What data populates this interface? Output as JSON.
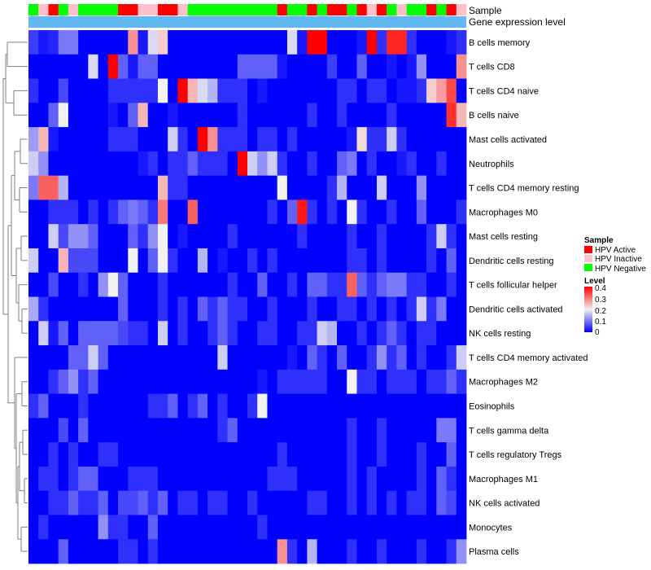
{
  "colors": {
    "low": "#0000FF",
    "mid": "#F2F2F2",
    "high": "#FF0000",
    "gene_expression_track": "#5FB8F0",
    "dendrogram": "#7F7F7F"
  },
  "chart_data": {
    "type": "heatmap",
    "annotation_tracks": [
      "Sample",
      "Gene expression level"
    ],
    "sample_legend": {
      "title": "Sample",
      "items": [
        {
          "label": "HPV Active",
          "color": "#FF0000"
        },
        {
          "label": "HPV Inactive",
          "color": "#FFC0CB"
        },
        {
          "label": "HPV Negative",
          "color": "#00FF00"
        }
      ]
    },
    "level_legend": {
      "title": "Level",
      "ticks": [
        "0.4",
        "0.3",
        "0.2",
        "0.1",
        "0"
      ],
      "range": [
        0,
        0.4
      ]
    },
    "sample_groups": [
      "N",
      "I",
      "A",
      "N",
      "I",
      "N",
      "N",
      "N",
      "N",
      "A",
      "A",
      "I",
      "I",
      "A",
      "A",
      "I",
      "N",
      "N",
      "N",
      "N",
      "N",
      "N",
      "N",
      "N",
      "N",
      "A",
      "N",
      "N",
      "A",
      "N",
      "A",
      "A",
      "N",
      "A",
      "I",
      "A",
      "N",
      "I",
      "N",
      "N",
      "A",
      "N",
      "A",
      "I"
    ],
    "rows": [
      {
        "name": "B cells memory",
        "values": [
          0.05,
          0.02,
          0.03,
          0.1,
          0.1,
          0.0,
          0.0,
          0.0,
          0.0,
          0.0,
          0.28,
          0.02,
          0.18,
          0.23,
          0.0,
          0.0,
          0.0,
          0.0,
          0.0,
          0.0,
          0.0,
          0.0,
          0.0,
          0.0,
          0.0,
          0.0,
          0.18,
          0.02,
          0.4,
          0.4,
          0.0,
          0.0,
          0.0,
          0.02,
          0.4,
          0.04,
          0.37,
          0.37,
          0.04,
          0.0,
          0.0,
          0.0,
          0.02,
          0.04
        ]
      },
      {
        "name": "T cells CD8",
        "values": [
          0.0,
          0.0,
          0.0,
          0.0,
          0.0,
          0.0,
          0.18,
          0.0,
          0.4,
          0.08,
          0.02,
          0.08,
          0.08,
          0.0,
          0.0,
          0.0,
          0.0,
          0.0,
          0.0,
          0.0,
          0.0,
          0.08,
          0.08,
          0.08,
          0.08,
          0.02,
          0.0,
          0.0,
          0.0,
          0.0,
          0.05,
          0.0,
          0.0,
          0.08,
          0.0,
          0.0,
          0.02,
          0.0,
          0.02,
          0.12,
          0.0,
          0.0,
          0.0,
          0.28
        ]
      },
      {
        "name": "T cells CD4 naive",
        "values": [
          0.04,
          0.0,
          0.0,
          0.06,
          0.0,
          0.0,
          0.0,
          0.0,
          0.04,
          0.04,
          0.04,
          0.04,
          0.04,
          0.2,
          0.0,
          0.4,
          0.25,
          0.18,
          0.15,
          0.04,
          0.04,
          0.04,
          0.0,
          0.02,
          0.0,
          0.0,
          0.0,
          0.0,
          0.0,
          0.0,
          0.0,
          0.04,
          0.04,
          0.0,
          0.04,
          0.04,
          0.0,
          0.02,
          0.02,
          0.04,
          0.23,
          0.27,
          0.34,
          0.0
        ]
      },
      {
        "name": "B cells naive",
        "values": [
          0.0,
          0.0,
          0.08,
          0.2,
          0.0,
          0.0,
          0.0,
          0.0,
          0.02,
          0.0,
          0.08,
          0.25,
          0.0,
          0.0,
          0.02,
          0.0,
          0.0,
          0.0,
          0.0,
          0.0,
          0.0,
          0.04,
          0.0,
          0.0,
          0.0,
          0.0,
          0.0,
          0.0,
          0.04,
          0.0,
          0.0,
          0.04,
          0.0,
          0.0,
          0.0,
          0.0,
          0.04,
          0.0,
          0.0,
          0.0,
          0.0,
          0.0,
          0.36,
          0.25
        ]
      },
      {
        "name": "Mast cells activated",
        "values": [
          0.13,
          0.25,
          0.02,
          0.0,
          0.0,
          0.0,
          0.0,
          0.0,
          0.04,
          0.04,
          0.04,
          0.0,
          0.0,
          0.0,
          0.17,
          0.04,
          0.0,
          0.4,
          0.28,
          0.04,
          0.04,
          0.04,
          0.0,
          0.04,
          0.04,
          0.0,
          0.04,
          0.0,
          0.0,
          0.0,
          0.0,
          0.0,
          0.02,
          0.22,
          0.04,
          0.04,
          0.17,
          0.04,
          0.0,
          0.0,
          0.0,
          0.0,
          0.0,
          0.0
        ]
      },
      {
        "name": "Neutrophils",
        "values": [
          0.17,
          0.12,
          0.0,
          0.0,
          0.0,
          0.0,
          0.0,
          0.0,
          0.0,
          0.0,
          0.0,
          0.02,
          0.04,
          0.0,
          0.04,
          0.04,
          0.08,
          0.04,
          0.04,
          0.04,
          0.0,
          0.4,
          0.17,
          0.12,
          0.17,
          0.04,
          0.0,
          0.0,
          0.04,
          0.0,
          0.0,
          0.08,
          0.1,
          0.0,
          0.04,
          0.0,
          0.0,
          0.02,
          0.04,
          0.0,
          0.0,
          0.04,
          0.0,
          0.0
        ]
      },
      {
        "name": "T cells CD4 memory resting",
        "values": [
          0.1,
          0.32,
          0.32,
          0.15,
          0.0,
          0.0,
          0.0,
          0.0,
          0.0,
          0.0,
          0.0,
          0.0,
          0.0,
          0.25,
          0.04,
          0.04,
          0.0,
          0.0,
          0.0,
          0.0,
          0.0,
          0.0,
          0.0,
          0.0,
          0.0,
          0.2,
          0.0,
          0.0,
          0.0,
          0.0,
          0.04,
          0.15,
          0.0,
          0.0,
          0.0,
          0.17,
          0.0,
          0.0,
          0.0,
          0.12,
          0.0,
          0.0,
          0.0,
          0.0
        ]
      },
      {
        "name": "Macrophages M0",
        "values": [
          0.0,
          0.0,
          0.04,
          0.04,
          0.04,
          0.0,
          0.04,
          0.0,
          0.04,
          0.08,
          0.1,
          0.08,
          0.04,
          0.3,
          0.0,
          0.0,
          0.32,
          0.0,
          0.0,
          0.0,
          0.0,
          0.0,
          0.0,
          0.0,
          0.04,
          0.0,
          0.08,
          0.38,
          0.04,
          0.0,
          0.04,
          0.0,
          0.2,
          0.04,
          0.0,
          0.0,
          0.04,
          0.0,
          0.0,
          0.08,
          0.0,
          0.0,
          0.0,
          0.04
        ]
      },
      {
        "name": "Mast cells resting",
        "values": [
          0.0,
          0.0,
          0.17,
          0.06,
          0.12,
          0.12,
          0.08,
          0.0,
          0.0,
          0.0,
          0.08,
          0.04,
          0.12,
          0.2,
          0.0,
          0.02,
          0.0,
          0.0,
          0.0,
          0.0,
          0.04,
          0.0,
          0.0,
          0.0,
          0.0,
          0.0,
          0.0,
          0.04,
          0.0,
          0.0,
          0.0,
          0.0,
          0.04,
          0.0,
          0.0,
          0.04,
          0.0,
          0.0,
          0.0,
          0.0,
          0.04,
          0.17,
          0.04,
          0.0
        ]
      },
      {
        "name": "Dendritic cells resting",
        "values": [
          0.17,
          0.0,
          0.0,
          0.25,
          0.06,
          0.06,
          0.06,
          0.0,
          0.0,
          0.0,
          0.2,
          0.0,
          0.08,
          0.2,
          0.04,
          0.0,
          0.0,
          0.15,
          0.0,
          0.02,
          0.0,
          0.0,
          0.04,
          0.0,
          0.04,
          0.0,
          0.0,
          0.0,
          0.0,
          0.0,
          0.0,
          0.0,
          0.04,
          0.04,
          0.0,
          0.04,
          0.0,
          0.0,
          0.0,
          0.0,
          0.04,
          0.0,
          0.08,
          0.0
        ]
      },
      {
        "name": "T cells follicular helper",
        "values": [
          0.0,
          0.0,
          0.06,
          0.0,
          0.0,
          0.04,
          0.0,
          0.12,
          0.2,
          0.08,
          0.0,
          0.0,
          0.0,
          0.04,
          0.0,
          0.0,
          0.0,
          0.0,
          0.0,
          0.0,
          0.04,
          0.0,
          0.0,
          0.08,
          0.0,
          0.0,
          0.04,
          0.0,
          0.08,
          0.08,
          0.04,
          0.04,
          0.32,
          0.08,
          0.04,
          0.08,
          0.1,
          0.1,
          0.04,
          0.04,
          0.0,
          0.0,
          0.04,
          0.0
        ]
      },
      {
        "name": "Dendritic cells activated",
        "values": [
          0.14,
          0.04,
          0.0,
          0.0,
          0.0,
          0.0,
          0.0,
          0.0,
          0.0,
          0.08,
          0.0,
          0.0,
          0.0,
          0.04,
          0.0,
          0.04,
          0.0,
          0.08,
          0.04,
          0.08,
          0.04,
          0.04,
          0.0,
          0.0,
          0.04,
          0.0,
          0.0,
          0.0,
          0.04,
          0.0,
          0.0,
          0.04,
          0.04,
          0.0,
          0.04,
          0.0,
          0.04,
          0.0,
          0.04,
          0.17,
          0.04,
          0.1,
          0.0,
          0.0
        ]
      },
      {
        "name": "NK cells resting",
        "values": [
          0.0,
          0.17,
          0.02,
          0.08,
          0.0,
          0.08,
          0.08,
          0.08,
          0.08,
          0.06,
          0.04,
          0.04,
          0.0,
          0.17,
          0.0,
          0.04,
          0.0,
          0.0,
          0.04,
          0.08,
          0.04,
          0.0,
          0.0,
          0.04,
          0.04,
          0.0,
          0.0,
          0.04,
          0.04,
          0.17,
          0.15,
          0.0,
          0.0,
          0.04,
          0.0,
          0.04,
          0.08,
          0.04,
          0.0,
          0.04,
          0.04,
          0.0,
          0.0,
          0.0
        ]
      },
      {
        "name": "T cells CD4 memory activated",
        "values": [
          0.0,
          0.0,
          0.0,
          0.0,
          0.08,
          0.08,
          0.17,
          0.08,
          0.0,
          0.0,
          0.0,
          0.0,
          0.0,
          0.0,
          0.0,
          0.0,
          0.0,
          0.0,
          0.0,
          0.17,
          0.0,
          0.0,
          0.0,
          0.0,
          0.0,
          0.0,
          0.02,
          0.0,
          0.08,
          0.04,
          0.0,
          0.08,
          0.0,
          0.0,
          0.04,
          0.12,
          0.04,
          0.08,
          0.0,
          0.04,
          0.0,
          0.0,
          0.04,
          0.17
        ]
      },
      {
        "name": "Macrophages M2",
        "values": [
          0.0,
          0.0,
          0.04,
          0.08,
          0.12,
          0.04,
          0.08,
          0.0,
          0.0,
          0.0,
          0.0,
          0.0,
          0.0,
          0.0,
          0.0,
          0.0,
          0.0,
          0.0,
          0.0,
          0.0,
          0.0,
          0.0,
          0.0,
          0.02,
          0.0,
          0.04,
          0.04,
          0.04,
          0.04,
          0.04,
          0.0,
          0.0,
          0.2,
          0.04,
          0.04,
          0.0,
          0.04,
          0.04,
          0.04,
          0.0,
          0.04,
          0.04,
          0.08,
          0.04
        ]
      },
      {
        "name": "Eosinophils",
        "values": [
          0.04,
          0.08,
          0.0,
          0.0,
          0.0,
          0.04,
          0.0,
          0.0,
          0.0,
          0.0,
          0.0,
          0.0,
          0.04,
          0.04,
          0.08,
          0.0,
          0.04,
          0.08,
          0.0,
          0.04,
          0.0,
          0.0,
          0.04,
          0.2,
          0.0,
          0.0,
          0.0,
          0.0,
          0.0,
          0.0,
          0.0,
          0.0,
          0.0,
          0.0,
          0.0,
          0.0,
          0.0,
          0.0,
          0.0,
          0.0,
          0.0,
          0.0,
          0.0,
          0.0
        ]
      },
      {
        "name": "T cells gamma delta",
        "values": [
          0.0,
          0.0,
          0.0,
          0.06,
          0.0,
          0.08,
          0.0,
          0.0,
          0.0,
          0.0,
          0.0,
          0.0,
          0.0,
          0.0,
          0.0,
          0.0,
          0.0,
          0.0,
          0.0,
          0.04,
          0.08,
          0.0,
          0.0,
          0.0,
          0.0,
          0.0,
          0.0,
          0.0,
          0.0,
          0.0,
          0.0,
          0.0,
          0.04,
          0.0,
          0.0,
          0.04,
          0.0,
          0.0,
          0.0,
          0.0,
          0.0,
          0.1,
          0.1,
          0.0
        ]
      },
      {
        "name": "T cells regulatory  Tregs",
        "values": [
          0.0,
          0.0,
          0.04,
          0.0,
          0.04,
          0.0,
          0.0,
          0.04,
          0.04,
          0.0,
          0.0,
          0.0,
          0.0,
          0.0,
          0.0,
          0.0,
          0.0,
          0.0,
          0.0,
          0.0,
          0.0,
          0.0,
          0.0,
          0.0,
          0.0,
          0.04,
          0.0,
          0.0,
          0.0,
          0.0,
          0.0,
          0.0,
          0.04,
          0.0,
          0.0,
          0.04,
          0.0,
          0.0,
          0.0,
          0.04,
          0.0,
          0.0,
          0.08,
          0.0
        ]
      },
      {
        "name": "Macrophages M1",
        "values": [
          0.0,
          0.04,
          0.04,
          0.0,
          0.04,
          0.08,
          0.08,
          0.0,
          0.0,
          0.0,
          0.04,
          0.04,
          0.04,
          0.0,
          0.0,
          0.0,
          0.0,
          0.0,
          0.0,
          0.0,
          0.0,
          0.0,
          0.0,
          0.0,
          0.04,
          0.04,
          0.04,
          0.0,
          0.0,
          0.0,
          0.0,
          0.0,
          0.04,
          0.0,
          0.04,
          0.0,
          0.0,
          0.0,
          0.0,
          0.04,
          0.0,
          0.08,
          0.04,
          0.0
        ]
      },
      {
        "name": "NK cells activated",
        "values": [
          0.0,
          0.0,
          0.04,
          0.04,
          0.08,
          0.04,
          0.04,
          0.08,
          0.0,
          0.06,
          0.06,
          0.08,
          0.04,
          0.08,
          0.0,
          0.04,
          0.04,
          0.0,
          0.04,
          0.04,
          0.0,
          0.0,
          0.04,
          0.0,
          0.0,
          0.0,
          0.0,
          0.0,
          0.04,
          0.04,
          0.0,
          0.0,
          0.04,
          0.0,
          0.04,
          0.0,
          0.04,
          0.0,
          0.04,
          0.04,
          0.0,
          0.08,
          0.06,
          0.0
        ]
      },
      {
        "name": "Monocytes",
        "values": [
          0.0,
          0.04,
          0.0,
          0.0,
          0.0,
          0.0,
          0.0,
          0.12,
          0.04,
          0.04,
          0.0,
          0.0,
          0.08,
          0.0,
          0.0,
          0.0,
          0.0,
          0.0,
          0.0,
          0.0,
          0.0,
          0.0,
          0.0,
          0.04,
          0.0,
          0.0,
          0.0,
          0.0,
          0.0,
          0.0,
          0.0,
          0.0,
          0.0,
          0.0,
          0.0,
          0.0,
          0.0,
          0.0,
          0.0,
          0.0,
          0.0,
          0.0,
          0.0,
          0.0
        ]
      },
      {
        "name": "Plasma cells",
        "values": [
          0.0,
          0.0,
          0.0,
          0.08,
          0.0,
          0.0,
          0.0,
          0.0,
          0.0,
          0.04,
          0.04,
          0.0,
          0.04,
          0.0,
          0.0,
          0.0,
          0.0,
          0.0,
          0.0,
          0.0,
          0.0,
          0.0,
          0.0,
          0.0,
          0.0,
          0.28,
          0.04,
          0.0,
          0.15,
          0.0,
          0.0,
          0.0,
          0.04,
          0.0,
          0.0,
          0.04,
          0.0,
          0.0,
          0.0,
          0.04,
          0.0,
          0.0,
          0.04,
          0.12
        ]
      }
    ]
  }
}
